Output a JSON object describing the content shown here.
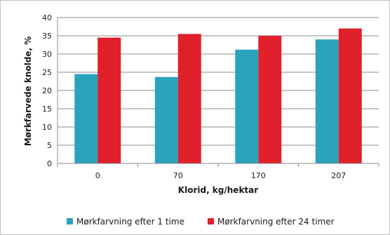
{
  "chart_data": {
    "type": "bar",
    "title": "",
    "xlabel": "Klorid, kg/hektar",
    "ylabel": "Mørkfarvede knolde, %",
    "categories": [
      "0",
      "70",
      "170",
      "207"
    ],
    "ylim": [
      0,
      40
    ],
    "yticks": [
      0,
      5,
      10,
      15,
      20,
      25,
      30,
      35,
      40
    ],
    "grid": true,
    "legend_position": "bottom",
    "series": [
      {
        "name": "Mørkfarvning efter 1 time",
        "color": "#2aa3bd",
        "values": [
          24.5,
          23.7,
          31.2,
          34.0
        ]
      },
      {
        "name": "Mørkfarvning efter 24 timer",
        "color": "#e0202a",
        "values": [
          34.5,
          35.5,
          35.0,
          37.0
        ]
      }
    ]
  }
}
